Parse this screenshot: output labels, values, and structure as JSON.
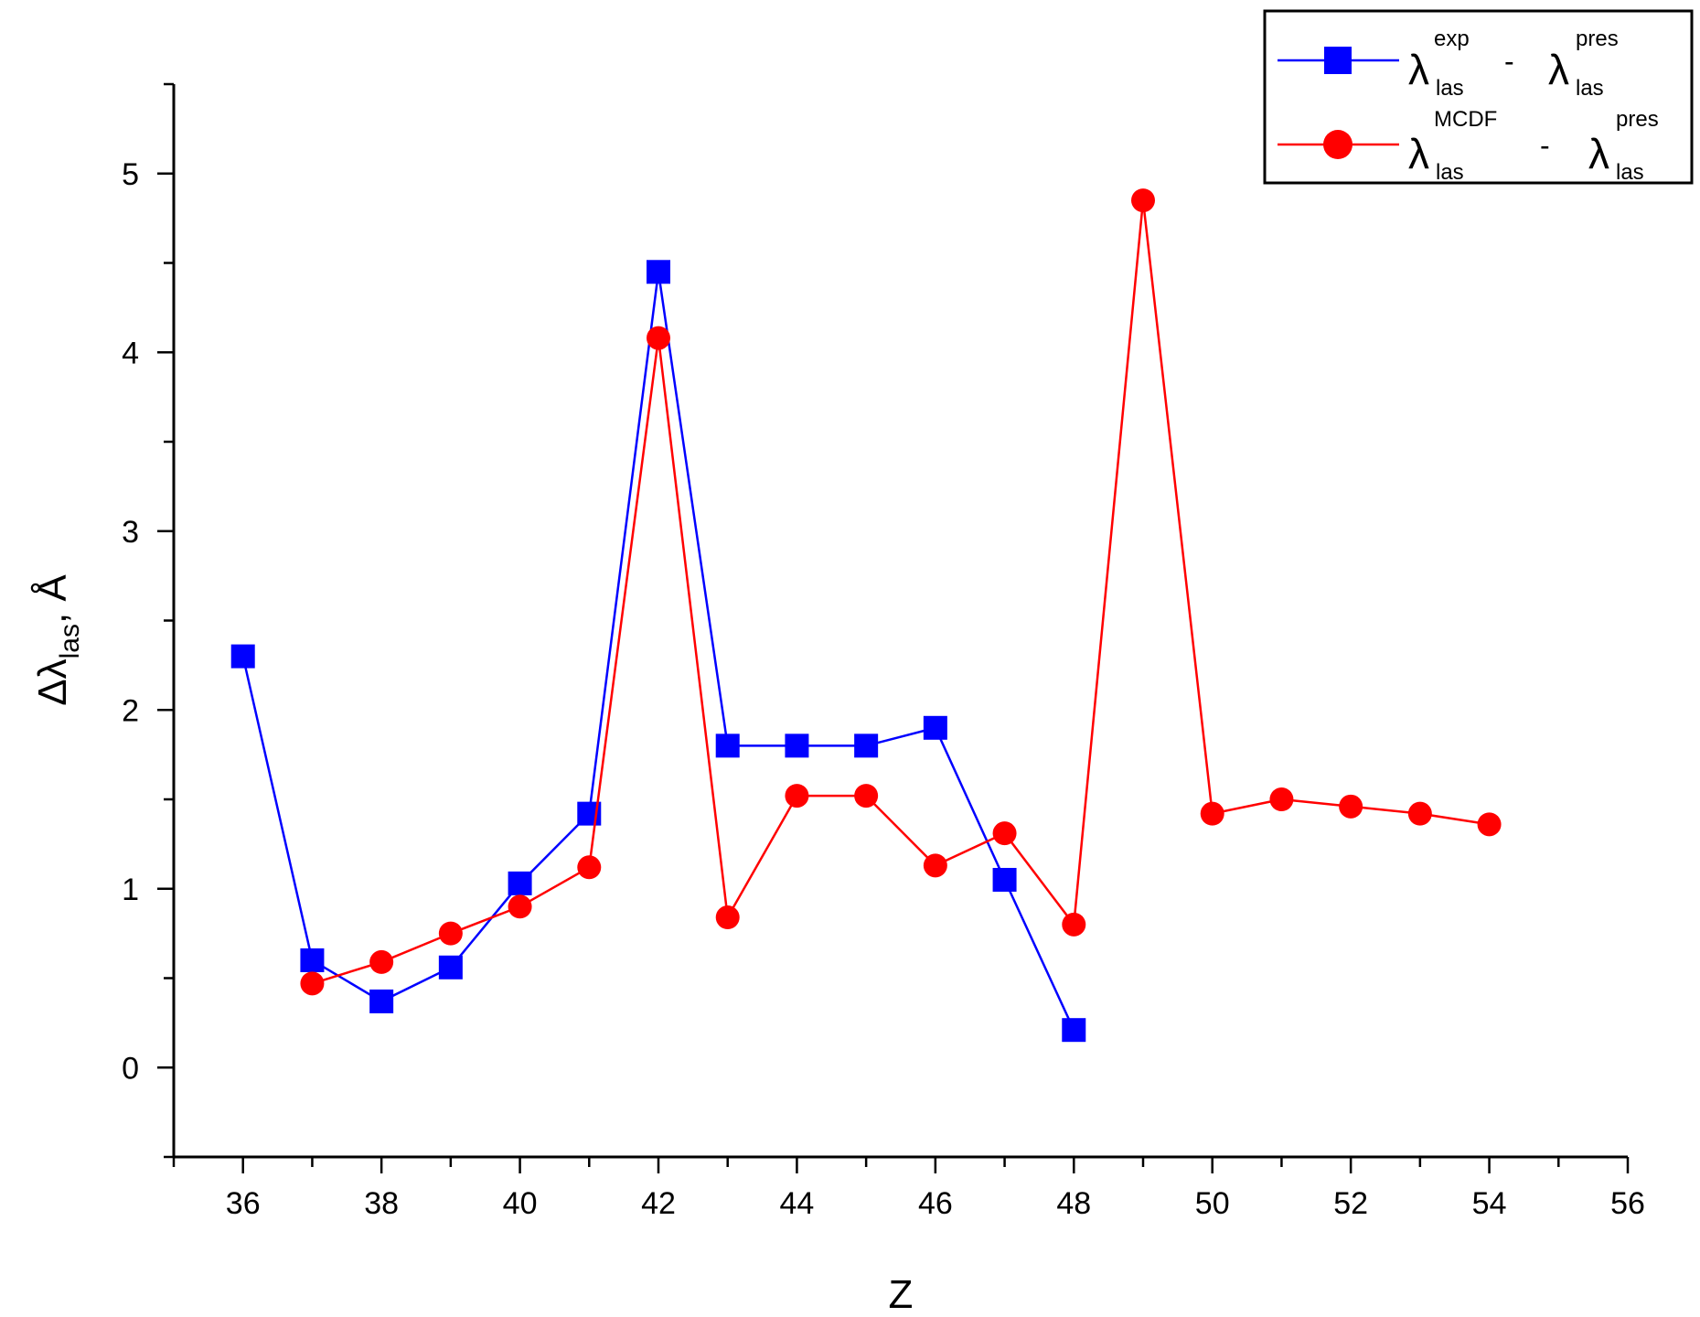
{
  "chart_data": {
    "type": "line",
    "xlabel": "Z",
    "ylabel": {
      "main": "Δλ",
      "subscript": "las",
      "unit": "Å"
    },
    "xlim": [
      35,
      56
    ],
    "ylim": [
      -0.5,
      5.5
    ],
    "xticks": [
      36,
      38,
      40,
      42,
      44,
      46,
      48,
      50,
      52,
      54,
      56
    ],
    "yticks": [
      0,
      1,
      2,
      3,
      4,
      5
    ],
    "grid": false,
    "legend_position": "top-right",
    "series": [
      {
        "legend": {
          "lambda1": "λ",
          "sup1": "exp",
          "sub1": "las",
          "minus": "-",
          "lambda2": "λ",
          "sup2": "pres",
          "sub2": "las"
        },
        "color": "#0000ff",
        "marker": "square",
        "x": [
          36,
          37,
          38,
          39,
          40,
          41,
          42,
          43,
          44,
          45,
          46,
          47,
          48
        ],
        "y": [
          2.3,
          0.6,
          0.37,
          0.56,
          1.03,
          1.42,
          4.45,
          1.8,
          1.8,
          1.8,
          1.9,
          1.05,
          0.21
        ]
      },
      {
        "legend": {
          "lambda1": "λ",
          "sup1": "MCDF",
          "sub1": "las",
          "minus": "-",
          "lambda2": "λ",
          "sup2": "pres",
          "sub2": "las"
        },
        "color": "#ff0000",
        "marker": "circle",
        "x": [
          37,
          38,
          39,
          40,
          41,
          42,
          43,
          44,
          45,
          46,
          47,
          48,
          49,
          50,
          51,
          52,
          53,
          54
        ],
        "y": [
          0.47,
          0.59,
          0.75,
          0.9,
          1.12,
          4.08,
          0.84,
          1.52,
          1.52,
          1.13,
          1.31,
          0.8,
          4.85,
          1.42,
          1.5,
          1.46,
          1.42,
          1.36
        ]
      }
    ]
  }
}
